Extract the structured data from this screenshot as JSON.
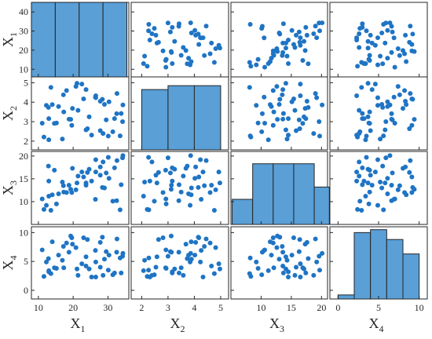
{
  "chart_data": {
    "type": "scatter-matrix",
    "variables": [
      {
        "key": "X1",
        "base": "X",
        "sub": "1",
        "range": [
          8,
          36
        ],
        "ticks": [
          10,
          20,
          30
        ],
        "yrange": [
          6,
          45
        ],
        "yticks": [
          10,
          20,
          30,
          40
        ]
      },
      {
        "key": "X2",
        "base": "X",
        "sub": "2",
        "range": [
          1.6,
          5.3
        ],
        "ticks": [
          2,
          3,
          4,
          5
        ],
        "yrange": [
          1.55,
          5.3
        ],
        "yticks": [
          2,
          3,
          4,
          5
        ]
      },
      {
        "key": "X3",
        "base": "X",
        "sub": "3",
        "range": [
          5,
          21
        ],
        "ticks": [
          10,
          15,
          20
        ],
        "yrange": [
          5,
          21
        ],
        "yticks": [
          10,
          15,
          20
        ]
      },
      {
        "key": "X4",
        "base": "X",
        "sub": "4",
        "range": [
          -1,
          11
        ],
        "ticks": [
          0,
          5,
          10
        ],
        "yrange": [
          -1.5,
          11
        ],
        "yticks": [
          0,
          5,
          10
        ]
      }
    ],
    "colors": {
      "marker": "#1f74c4",
      "bar": "#5a9fd6",
      "edge": "#262626"
    },
    "histograms": [
      {
        "variable": "X1",
        "edges": [
          8,
          14.86,
          21.72,
          28.58,
          35.44
        ],
        "counts": [
          45,
          45,
          45,
          45
        ]
      },
      {
        "variable": "X2",
        "edges": [
          2,
          3,
          4,
          5
        ],
        "counts": [
          4.65,
          4.85,
          4.85
        ]
      },
      {
        "variable": "X3",
        "edges": [
          5.2,
          8.6,
          12.0,
          15.4,
          18.8,
          21.3
        ],
        "counts": [
          10.5,
          18.3,
          18.3,
          18.3,
          13.2
        ]
      },
      {
        "variable": "X4",
        "edges": [
          0,
          2,
          4,
          6,
          8,
          10
        ],
        "counts": [
          -0.8,
          10,
          10.5,
          8.8,
          6.3
        ]
      }
    ],
    "observations": [
      [
        21.1,
        4.97,
        14.1,
        3.7
      ],
      [
        14.6,
        2.91,
        16.9,
        3.9
      ],
      [
        33.5,
        2.27,
        8.2,
        5.6
      ],
      [
        26.4,
        4.26,
        10.5,
        6.9
      ],
      [
        13.0,
        2.07,
        11.2,
        3.4
      ],
      [
        32.5,
        3.41,
        10.2,
        6.6
      ],
      [
        23.7,
        2.58,
        14.1,
        5.8
      ],
      [
        31.4,
        2.48,
        10.1,
        2.7
      ],
      [
        23.7,
        4.65,
        13.6,
        4.2
      ],
      [
        15.2,
        2.93,
        9.5,
        3.8
      ],
      [
        12.3,
        3.84,
        9.2,
        4.9
      ],
      [
        20.8,
        4.81,
        12.6,
        7.4
      ],
      [
        34.2,
        3.0,
        19.6,
        5.9
      ],
      [
        19.8,
        3.68,
        17.3,
        8.0
      ],
      [
        28.4,
        4.15,
        13.1,
        9.2
      ],
      [
        29.5,
        3.09,
        16.3,
        6.7
      ],
      [
        25.3,
        2.31,
        14.5,
        2.3
      ],
      [
        18.1,
        4.6,
        12.0,
        8.2
      ],
      [
        22.5,
        4.93,
        16.5,
        4.6
      ],
      [
        11.6,
        2.21,
        8.3,
        2.4
      ],
      [
        27.8,
        4.05,
        17.6,
        8.3
      ],
      [
        31.9,
        3.16,
        17.4,
        3.0
      ],
      [
        16.9,
        2.11,
        14.3,
        5.2
      ],
      [
        14.0,
        3.88,
        11.5,
        8.4
      ],
      [
        24.6,
        3.25,
        17.1,
        3.7
      ],
      [
        32.6,
        4.45,
        19.0,
        8.9
      ],
      [
        19.3,
        3.12,
        12.7,
        9.4
      ],
      [
        30.3,
        4.02,
        15.1,
        6.1
      ],
      [
        28.6,
        2.39,
        18.7,
        2.6
      ],
      [
        13.0,
        3.16,
        14.5,
        3.2
      ],
      [
        26.5,
        4.23,
        19.2,
        4.9
      ],
      [
        15.8,
        3.78,
        11.7,
        6.1
      ],
      [
        17.2,
        4.38,
        13.5,
        7.6
      ],
      [
        21.4,
        3.58,
        15.6,
        2.6
      ],
      [
        33.8,
        3.42,
        13.7,
        3.0
      ],
      [
        19.6,
        2.81,
        12.0,
        9.1
      ],
      [
        23.0,
        4.17,
        15.4,
        9.1
      ],
      [
        17.3,
        3.5,
        12.1,
        3.9
      ],
      [
        11.1,
        2.92,
        10.6,
        7.0
      ],
      [
        29.0,
        3.89,
        13.0,
        5.4
      ],
      [
        27.8,
        2.54,
        15.8,
        4.0
      ],
      [
        13.6,
        4.76,
        8.1,
        2.9
      ],
      [
        18.8,
        3.13,
        13.6,
        6.6
      ],
      [
        26.5,
        4.33,
        16.5,
        2.3
      ],
      [
        24.1,
        2.64,
        16.4,
        8.8
      ],
      [
        12.9,
        3.73,
        17.8,
        5.5
      ],
      [
        34.3,
        3.86,
        20.1,
        6.4
      ],
      [
        30.1,
        2.26,
        19.7,
        3.5
      ]
    ]
  }
}
